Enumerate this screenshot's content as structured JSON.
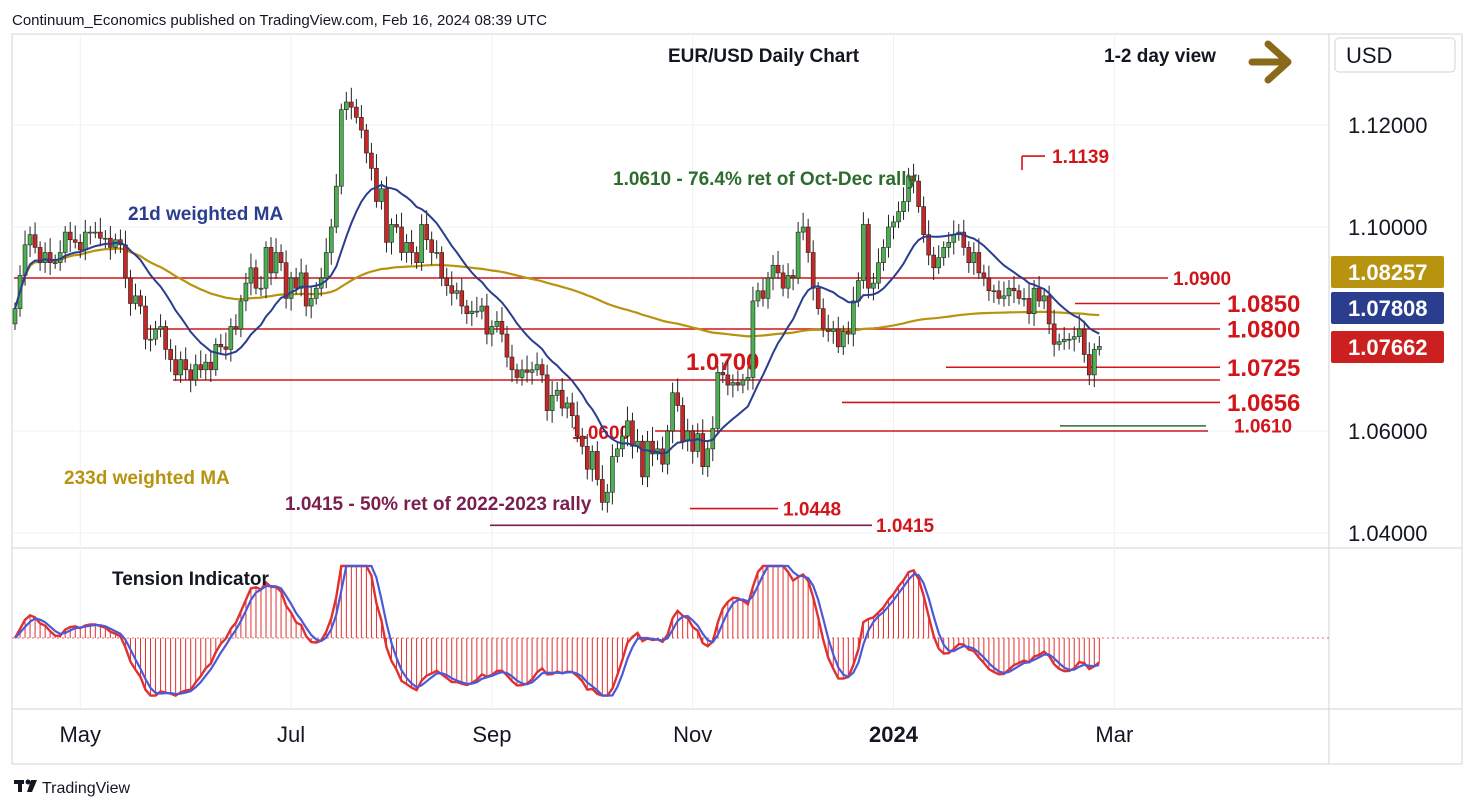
{
  "header": {
    "publisher": "Continuum_Economics published on TradingView.com, Feb 16, 2024 08:39 UTC",
    "currency": "USD",
    "footer_brand": "TradingView"
  },
  "chart_data": [
    {
      "type": "candlestick",
      "title": "EUR/USD Daily Chart",
      "subtitle": "1-2 day view",
      "y_axis_labels": [
        "1.12000",
        "1.10000",
        "1.06000",
        "1.04000"
      ],
      "ylim": [
        1.0375,
        1.1295
      ],
      "x_axis_labels": [
        "May",
        "Jul",
        "Sep",
        "Nov",
        "2024",
        "Mar"
      ],
      "x_axis_label_index": [
        13,
        55,
        95,
        135,
        175,
        219
      ],
      "close": [
        1.084,
        1.0905,
        1.0965,
        1.0985,
        1.096,
        1.093,
        1.095,
        1.093,
        1.093,
        1.095,
        1.099,
        1.0975,
        1.097,
        1.0955,
        1.099,
        1.099,
        1.099,
        1.0978,
        1.0978,
        1.096,
        1.0975,
        1.0965,
        1.09,
        1.085,
        1.0865,
        1.0845,
        1.078,
        1.078,
        1.08,
        1.0805,
        1.076,
        1.074,
        1.071,
        1.074,
        1.072,
        1.07,
        1.073,
        1.072,
        1.0735,
        1.072,
        1.077,
        1.0765,
        1.076,
        1.0805,
        1.08,
        1.0855,
        1.089,
        1.092,
        1.088,
        1.088,
        1.096,
        1.091,
        1.095,
        1.093,
        1.086,
        1.09,
        1.088,
        1.091,
        1.0845,
        1.086,
        1.088,
        1.09,
        1.095,
        1.1,
        1.108,
        1.123,
        1.1245,
        1.1235,
        1.1215,
        1.119,
        1.1145,
        1.1115,
        1.105,
        1.1075,
        1.097,
        1.1005,
        1.1,
        1.095,
        1.097,
        1.095,
        1.093,
        1.1005,
        1.0975,
        1.095,
        1.095,
        1.09,
        1.0885,
        1.087,
        1.0875,
        1.0845,
        1.083,
        1.0835,
        1.0835,
        1.0845,
        1.079,
        1.0805,
        1.0815,
        1.079,
        1.0745,
        1.072,
        1.0705,
        1.072,
        1.0715,
        1.072,
        1.073,
        1.071,
        1.064,
        1.067,
        1.068,
        1.0645,
        1.0655,
        1.063,
        1.059,
        1.057,
        1.0525,
        1.056,
        1.0505,
        1.046,
        1.048,
        1.055,
        1.0565,
        1.059,
        1.062,
        1.057,
        1.058,
        1.051,
        1.058,
        1.0555,
        1.0565,
        1.0535,
        1.06,
        1.0675,
        1.065,
        1.058,
        1.06,
        1.056,
        1.0595,
        1.053,
        1.0565,
        1.0605,
        1.0715,
        1.071,
        1.069,
        1.0695,
        1.069,
        1.07,
        1.0705,
        1.0855,
        1.0875,
        1.086,
        1.09,
        1.0925,
        1.091,
        1.088,
        1.0905,
        1.09,
        1.099,
        1.1,
        1.095,
        1.088,
        1.084,
        1.08,
        1.0795,
        1.08,
        1.0765,
        1.0795,
        1.079,
        1.0855,
        1.0895,
        1.1005,
        1.088,
        1.089,
        1.093,
        1.096,
        1.1,
        1.101,
        1.103,
        1.105,
        1.11,
        1.109,
        1.104,
        1.0985,
        1.0945,
        1.092,
        1.094,
        1.096,
        1.097,
        1.0985,
        1.099,
        1.096,
        1.093,
        1.095,
        1.091,
        1.09,
        1.0875,
        1.0875,
        1.086,
        1.0865,
        1.088,
        1.0875,
        1.086,
        1.086,
        1.083,
        1.088,
        1.0855,
        1.0865,
        1.081,
        1.077,
        1.0775,
        1.078,
        1.078,
        1.0785,
        1.08,
        1.075,
        1.071,
        1.076,
        1.0766
      ],
      "last_index_date": "Feb 16, 2024",
      "series": [
        {
          "name": "21d weighted MA",
          "color": "#2a3d8f",
          "last": 1.07808
        },
        {
          "name": "233d weighted MA",
          "color": "#b8930f",
          "last": 1.08257
        }
      ],
      "levels": [
        {
          "label": "1.0900",
          "value": 1.09,
          "color": "#d1151a"
        },
        {
          "label": "1.0850",
          "value": 1.085,
          "color": "#d1151a"
        },
        {
          "label": "1.0800",
          "value": 1.08,
          "color": "#d1151a"
        },
        {
          "label": "1.0725",
          "value": 1.0725,
          "color": "#d1151a"
        },
        {
          "label": "1.0700",
          "value": 1.07,
          "color": "#d1151a"
        },
        {
          "label": "1.0656",
          "value": 1.0656,
          "color": "#d1151a"
        },
        {
          "label": "1.0600",
          "value": 1.06,
          "color": "#d1151a"
        },
        {
          "label": "1.0610",
          "value": 1.061,
          "color": "#2e6b2e"
        },
        {
          "label": "1.1139",
          "value": 1.1139,
          "color": "#d1151a"
        },
        {
          "label": "1.0448",
          "value": 1.0448,
          "color": "#d1151a"
        },
        {
          "label": "1.0415",
          "value": 1.0415,
          "color": "#7a1f4f"
        }
      ],
      "annotations": [
        "1.0610 - 76.4% ret of Oct-Dec rally",
        "1.0415 - 50% ret of 2022-2023 rally"
      ],
      "price_boxes": [
        {
          "label": "1.08257",
          "color": "#b8930f"
        },
        {
          "label": "1.07808",
          "color": "#2a3d8f"
        },
        {
          "label": "1.07662",
          "color": "#cc1f1f"
        }
      ],
      "up_color": "#2e7d32",
      "down_color": "#b71c1c",
      "grid": true
    },
    {
      "type": "histogram",
      "title": "Tension Indicator",
      "series": [
        {
          "name": "histogram",
          "color": "#e03030"
        },
        {
          "name": "signal",
          "color": "#4a5ad8"
        }
      ]
    }
  ]
}
